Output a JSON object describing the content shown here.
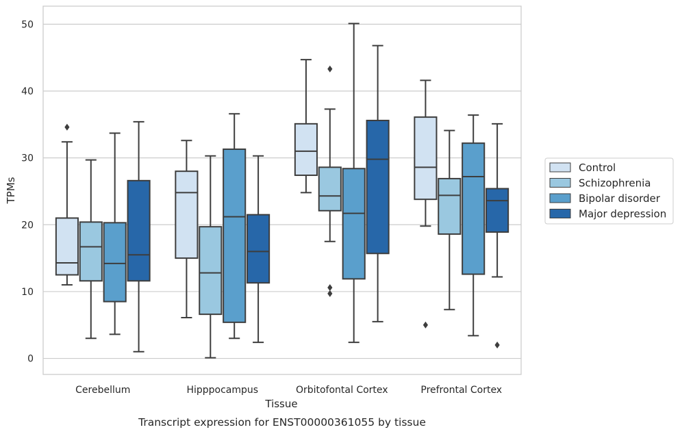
{
  "chart_data": {
    "type": "box",
    "caption": "Transcript expression for ENST00000361055 by tissue",
    "xlabel": "Tissue",
    "ylabel": "TPMs",
    "ylim": [
      -2.4,
      52.7
    ],
    "yticks": [
      0,
      10,
      20,
      30,
      40,
      50
    ],
    "grid": true,
    "legend_position": "right",
    "categories": [
      "Cerebellum",
      "Hipppocampus",
      "Orbitofontal Cortex",
      "Prefrontal Cortex"
    ],
    "series": [
      {
        "name": "Control",
        "color": "#d1e2f2",
        "boxes": [
          {
            "whisker_low": 11.0,
            "q1": 12.5,
            "median": 14.3,
            "q3": 21.0,
            "whisker_high": 32.4,
            "outliers": [
              34.6
            ]
          },
          {
            "whisker_low": 6.1,
            "q1": 15.0,
            "median": 24.8,
            "q3": 28.0,
            "whisker_high": 32.6,
            "outliers": []
          },
          {
            "whisker_low": 24.8,
            "q1": 27.4,
            "median": 31.0,
            "q3": 35.1,
            "whisker_high": 44.7,
            "outliers": []
          },
          {
            "whisker_low": 19.8,
            "q1": 23.8,
            "median": 28.6,
            "q3": 36.1,
            "whisker_high": 41.6,
            "outliers": [
              5.0
            ]
          }
        ]
      },
      {
        "name": "Schizophrenia",
        "color": "#9ac8e0",
        "boxes": [
          {
            "whisker_low": 3.0,
            "q1": 11.6,
            "median": 16.7,
            "q3": 20.4,
            "whisker_high": 29.7,
            "outliers": []
          },
          {
            "whisker_low": 0.1,
            "q1": 6.6,
            "median": 12.8,
            "q3": 19.7,
            "whisker_high": 30.3,
            "outliers": []
          },
          {
            "whisker_low": 17.5,
            "q1": 22.1,
            "median": 24.3,
            "q3": 28.6,
            "whisker_high": 37.3,
            "outliers": [
              43.3,
              10.6,
              9.7
            ]
          },
          {
            "whisker_low": 7.3,
            "q1": 18.6,
            "median": 24.4,
            "q3": 26.9,
            "whisker_high": 34.1,
            "outliers": []
          }
        ]
      },
      {
        "name": "Bipolar disorder",
        "color": "#5a9fcc",
        "boxes": [
          {
            "whisker_low": 3.6,
            "q1": 8.5,
            "median": 14.2,
            "q3": 20.3,
            "whisker_high": 33.7,
            "outliers": []
          },
          {
            "whisker_low": 3.0,
            "q1": 5.4,
            "median": 21.2,
            "q3": 31.3,
            "whisker_high": 36.6,
            "outliers": []
          },
          {
            "whisker_low": 2.4,
            "q1": 11.9,
            "median": 21.7,
            "q3": 28.4,
            "whisker_high": 50.1,
            "outliers": []
          },
          {
            "whisker_low": 3.4,
            "q1": 12.6,
            "median": 27.2,
            "q3": 32.2,
            "whisker_high": 36.4,
            "outliers": []
          }
        ]
      },
      {
        "name": "Major depression",
        "color": "#2767a9",
        "boxes": [
          {
            "whisker_low": 1.0,
            "q1": 11.6,
            "median": 15.5,
            "q3": 26.6,
            "whisker_high": 35.4,
            "outliers": []
          },
          {
            "whisker_low": 2.4,
            "q1": 11.3,
            "median": 16.0,
            "q3": 21.5,
            "whisker_high": 30.3,
            "outliers": []
          },
          {
            "whisker_low": 5.5,
            "q1": 15.7,
            "median": 29.8,
            "q3": 35.6,
            "whisker_high": 46.8,
            "outliers": []
          },
          {
            "whisker_low": 12.2,
            "q1": 18.9,
            "median": 23.6,
            "q3": 25.4,
            "whisker_high": 35.1,
            "outliers": [
              2.0
            ]
          }
        ]
      }
    ]
  }
}
